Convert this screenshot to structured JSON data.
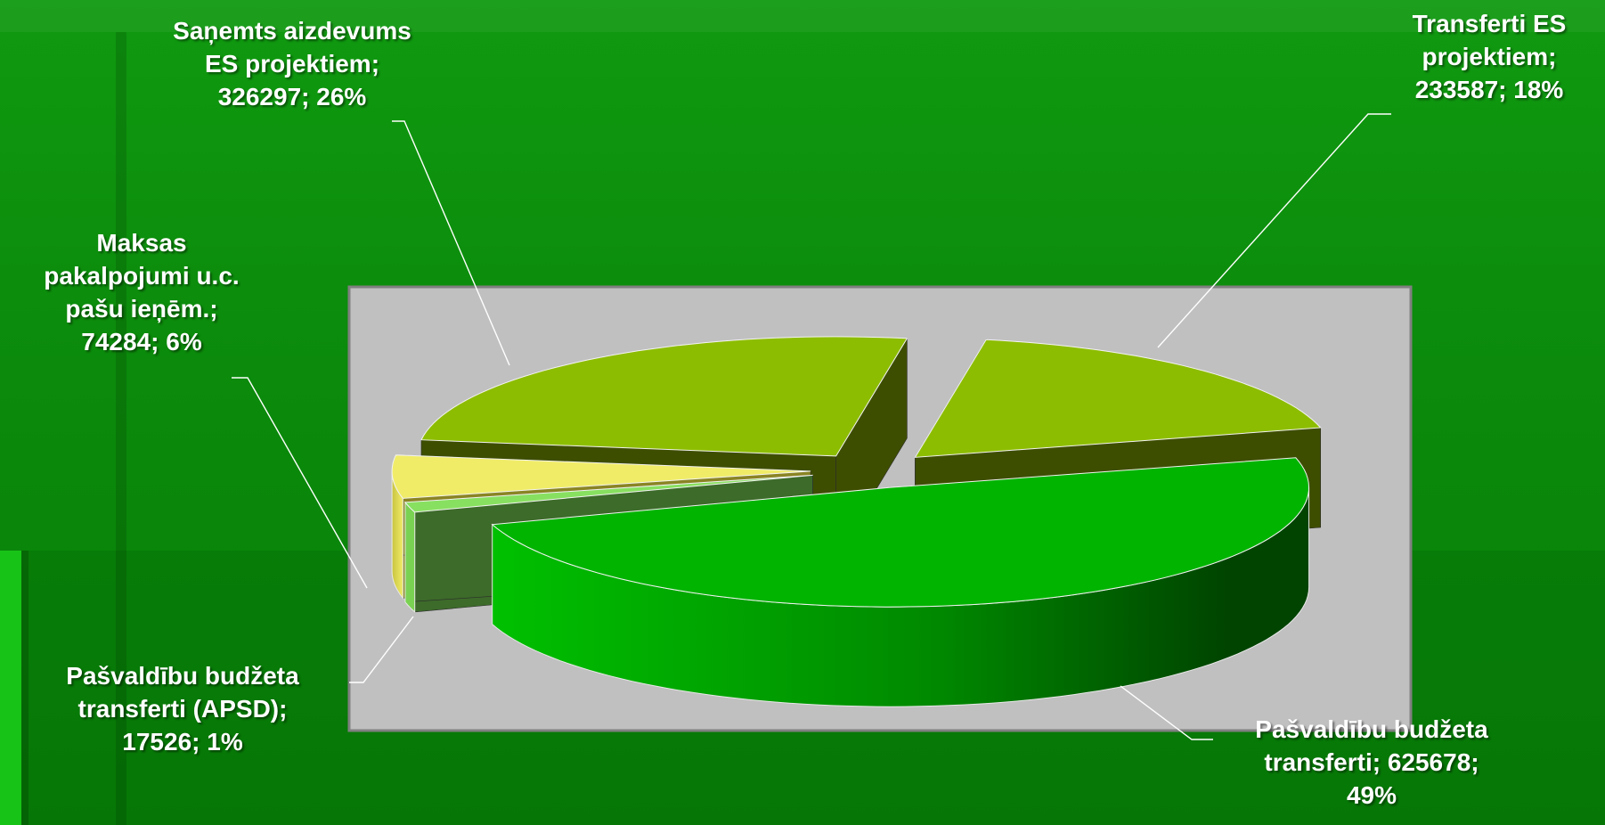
{
  "colors": {
    "background": "#0b8a0b",
    "plot_area": "#c0c0c0",
    "label_text": "#ffffff",
    "leader_line": "#ffffff"
  },
  "chart_data": {
    "type": "pie",
    "style": "3d-exploded",
    "legend": "none",
    "slices": [
      {
        "label_lines": [
          "Pašvaldību budžeta",
          "transferti; 625678;",
          "49%"
        ],
        "value": 625678,
        "percent": 49,
        "top_color": "#00b400",
        "side_color": "#009400",
        "side_dark": "#004800"
      },
      {
        "label_lines": [
          "Pašvaldību budžeta",
          "transferti (APSD);",
          "17526; 1%"
        ],
        "value": 17526,
        "percent": 1,
        "top_color": "#88e060",
        "side_color": "#7ad252",
        "side_dark": "#3d6b2a"
      },
      {
        "label_lines": [
          "Maksas",
          "pakalpojumi u.c.",
          "pašu ieņēm.;",
          "74284; 6%"
        ],
        "value": 74284,
        "percent": 6,
        "top_color": "#f0ec68",
        "side_color": "#e2de50",
        "side_dark": "#8a8424"
      },
      {
        "label_lines": [
          "Saņemts aizdevums",
          "ES projektiem;",
          "326297; 26%"
        ],
        "value": 326297,
        "percent": 26,
        "top_color": "#8dbd00",
        "side_color": "#6e9400",
        "side_dark": "#3e4e00"
      },
      {
        "label_lines": [
          "Transferti ES",
          "projektiem;",
          "233587; 18%"
        ],
        "value": 233587,
        "percent": 18,
        "top_color": "#8dbd00",
        "side_color": "#6e9400",
        "side_dark": "#3e4e00"
      }
    ]
  }
}
